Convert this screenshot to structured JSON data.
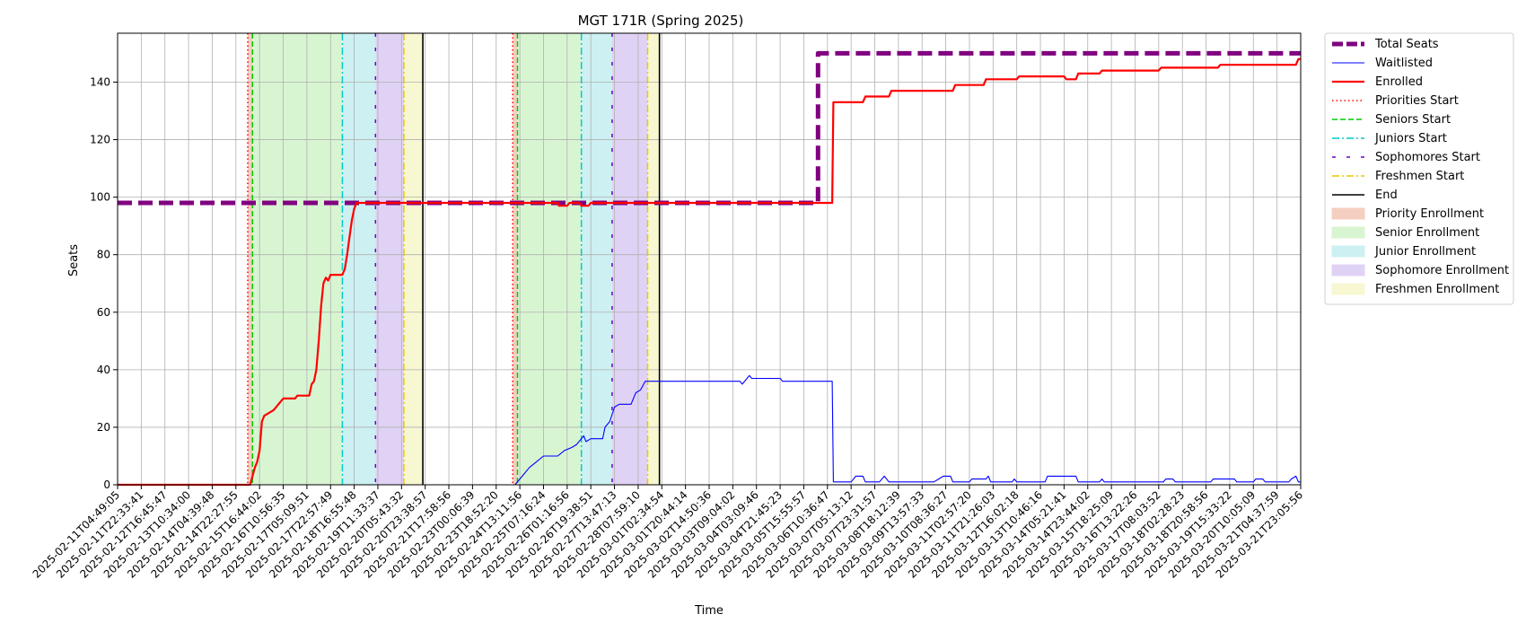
{
  "chart_data": {
    "type": "line",
    "title": "MGT 171R (Spring 2025)",
    "xlabel": "Time",
    "ylabel": "Seats",
    "ylim": [
      0,
      157
    ],
    "yticks": [
      0,
      20,
      40,
      60,
      80,
      100,
      120,
      140
    ],
    "grid": true,
    "legend_position": "outside right",
    "x_range_index": [
      0,
      50
    ],
    "x_tick_labels": [
      "2025-02-11T04:49:05",
      "2025-02-11T22:33:41",
      "2025-02-12T16:45:47",
      "2025-02-13T10:34:00",
      "2025-02-14T04:39:48",
      "2025-02-14T22:27:55",
      "2025-02-15T16:44:02",
      "2025-02-16T10:56:35",
      "2025-02-17T05:09:51",
      "2025-02-17T22:57:49",
      "2025-02-18T16:55:48",
      "2025-02-19T11:33:37",
      "2025-02-20T05:43:32",
      "2025-02-20T23:38:57",
      "2025-02-21T17:58:56",
      "2025-02-23T00:06:39",
      "2025-02-23T18:52:20",
      "2025-02-24T13:11:56",
      "2025-02-25T07:16:24",
      "2025-02-26T01:16:56",
      "2025-02-26T19:38:51",
      "2025-02-27T13:47:13",
      "2025-02-28T07:59:10",
      "2025-03-01T02:34:54",
      "2025-03-01T20:44:14",
      "2025-03-02T14:50:36",
      "2025-03-03T09:04:02",
      "2025-03-04T03:09:46",
      "2025-03-04T21:45:23",
      "2025-03-05T15:55:57",
      "2025-03-06T10:36:47",
      "2025-03-07T05:13:12",
      "2025-03-07T23:31:57",
      "2025-03-08T18:12:39",
      "2025-03-09T13:57:33",
      "2025-03-10T08:36:27",
      "2025-03-11T02:57:20",
      "2025-03-11T21:26:03",
      "2025-03-12T16:02:18",
      "2025-03-13T10:46:16",
      "2025-03-14T05:21:41",
      "2025-03-14T23:44:02",
      "2025-03-15T18:25:09",
      "2025-03-16T13:22:26",
      "2025-03-17T08:03:52",
      "2025-03-18T02:28:23",
      "2025-03-18T20:58:56",
      "2025-03-19T15:33:22",
      "2025-03-20T10:05:09",
      "2025-03-21T04:37:59",
      "2025-03-21T23:05:56"
    ],
    "series": [
      {
        "name": "Total Seats",
        "color": "#800080",
        "style": "dashed-thick",
        "points": [
          [
            0,
            98
          ],
          [
            29.6,
            98
          ],
          [
            29.6,
            150
          ],
          [
            50,
            150
          ]
        ]
      },
      {
        "name": "Waitlisted",
        "color": "#0000ff",
        "style": "solid-thin",
        "points": [
          [
            0,
            0
          ],
          [
            16.8,
            0
          ],
          [
            17.1,
            3
          ],
          [
            17.4,
            6
          ],
          [
            17.7,
            8
          ],
          [
            18.0,
            10
          ],
          [
            18.6,
            10
          ],
          [
            18.9,
            12
          ],
          [
            19.2,
            13
          ],
          [
            19.4,
            14
          ],
          [
            19.7,
            17
          ],
          [
            19.8,
            15
          ],
          [
            20.0,
            16
          ],
          [
            20.5,
            16
          ],
          [
            20.6,
            20
          ],
          [
            20.8,
            22
          ],
          [
            21.0,
            27
          ],
          [
            21.2,
            28
          ],
          [
            21.7,
            28
          ],
          [
            21.9,
            32
          ],
          [
            22.1,
            33
          ],
          [
            22.3,
            36
          ],
          [
            26.3,
            36
          ],
          [
            26.4,
            35
          ],
          [
            26.6,
            37
          ],
          [
            26.7,
            38
          ],
          [
            26.8,
            37
          ],
          [
            28.0,
            37
          ],
          [
            28.1,
            36
          ],
          [
            30.2,
            36
          ],
          [
            30.25,
            1
          ],
          [
            31.0,
            1
          ],
          [
            31.2,
            3
          ],
          [
            31.5,
            3
          ],
          [
            31.6,
            1
          ],
          [
            32.2,
            1
          ],
          [
            32.4,
            3
          ],
          [
            32.6,
            1
          ],
          [
            34.5,
            1
          ],
          [
            34.7,
            2
          ],
          [
            34.9,
            3
          ],
          [
            35.2,
            3
          ],
          [
            35.3,
            1
          ],
          [
            36.0,
            1
          ],
          [
            36.1,
            2
          ],
          [
            36.7,
            2
          ],
          [
            36.8,
            3
          ],
          [
            36.9,
            1
          ],
          [
            37.8,
            1
          ],
          [
            37.9,
            2
          ],
          [
            38.0,
            1
          ],
          [
            39.2,
            1
          ],
          [
            39.3,
            3
          ],
          [
            40.5,
            3
          ],
          [
            40.6,
            1
          ],
          [
            41.5,
            1
          ],
          [
            41.6,
            2
          ],
          [
            41.7,
            1
          ],
          [
            44.2,
            1
          ],
          [
            44.3,
            2
          ],
          [
            44.6,
            2
          ],
          [
            44.7,
            1
          ],
          [
            46.2,
            1
          ],
          [
            46.3,
            2
          ],
          [
            47.2,
            2
          ],
          [
            47.3,
            1
          ],
          [
            48.0,
            1
          ],
          [
            48.1,
            2
          ],
          [
            48.4,
            2
          ],
          [
            48.5,
            1
          ],
          [
            49.5,
            1
          ],
          [
            49.6,
            2
          ],
          [
            49.8,
            3
          ],
          [
            49.9,
            1
          ],
          [
            50,
            1
          ]
        ]
      },
      {
        "name": "Enrolled",
        "color": "#ff0000",
        "style": "solid-thick",
        "points": [
          [
            0,
            0
          ],
          [
            5.6,
            0
          ],
          [
            5.7,
            3
          ],
          [
            5.8,
            6
          ],
          [
            5.9,
            8
          ],
          [
            6.0,
            12
          ],
          [
            6.1,
            22
          ],
          [
            6.2,
            24
          ],
          [
            6.4,
            25
          ],
          [
            6.6,
            26
          ],
          [
            6.8,
            28
          ],
          [
            7.0,
            30
          ],
          [
            7.5,
            30
          ],
          [
            7.6,
            31
          ],
          [
            8.1,
            31
          ],
          [
            8.2,
            35
          ],
          [
            8.3,
            36
          ],
          [
            8.4,
            40
          ],
          [
            8.5,
            50
          ],
          [
            8.6,
            62
          ],
          [
            8.7,
            70
          ],
          [
            8.8,
            72
          ],
          [
            8.9,
            71
          ],
          [
            9.0,
            73
          ],
          [
            9.5,
            73
          ],
          [
            9.6,
            75
          ],
          [
            9.7,
            80
          ],
          [
            9.8,
            86
          ],
          [
            9.9,
            92
          ],
          [
            10.0,
            96
          ],
          [
            10.1,
            98
          ],
          [
            17.9,
            98
          ],
          [
            18.0,
            98
          ],
          [
            18.6,
            98
          ],
          [
            18.65,
            97
          ],
          [
            19.0,
            97
          ],
          [
            19.1,
            98
          ],
          [
            19.5,
            98
          ],
          [
            19.6,
            97
          ],
          [
            19.9,
            97
          ],
          [
            20.0,
            98
          ],
          [
            30.2,
            98
          ],
          [
            30.25,
            133
          ],
          [
            31.5,
            133
          ],
          [
            31.6,
            135
          ],
          [
            32.6,
            135
          ],
          [
            32.7,
            137
          ],
          [
            35.3,
            137
          ],
          [
            35.4,
            139
          ],
          [
            36.6,
            139
          ],
          [
            36.7,
            141
          ],
          [
            38.0,
            141
          ],
          [
            38.1,
            142
          ],
          [
            40.0,
            142
          ],
          [
            40.1,
            141
          ],
          [
            40.5,
            141
          ],
          [
            40.6,
            143
          ],
          [
            41.5,
            143
          ],
          [
            41.6,
            144
          ],
          [
            44.0,
            144
          ],
          [
            44.1,
            145
          ],
          [
            46.5,
            145
          ],
          [
            46.6,
            146
          ],
          [
            49.8,
            146
          ],
          [
            49.9,
            148
          ],
          [
            50,
            148
          ]
        ]
      }
    ],
    "phase_lines": [
      {
        "name": "Priorities Start",
        "color": "#ff0000",
        "style": "dotted",
        "x": [
          5.5,
          16.7
        ]
      },
      {
        "name": "Seniors Start",
        "color": "#00cc00",
        "style": "dashed",
        "x": [
          5.7,
          16.9
        ]
      },
      {
        "name": "Juniors Start",
        "color": "#00cccc",
        "style": "dashdot",
        "x": [
          9.5,
          19.6
        ]
      },
      {
        "name": "Sophomores Start",
        "color": "#6600cc",
        "style": "loosedash",
        "x": [
          10.9,
          20.9
        ]
      },
      {
        "name": "Freshmen Start",
        "color": "#e6c800",
        "style": "dashdot",
        "x": [
          12.1,
          22.4
        ]
      },
      {
        "name": "End",
        "color": "#000000",
        "style": "solid",
        "x": [
          12.9,
          22.9
        ]
      }
    ],
    "phase_bands": [
      {
        "name": "Priority Enrollment",
        "color": "#f4cfc0",
        "ranges": [
          [
            5.5,
            5.7
          ],
          [
            16.7,
            16.9
          ]
        ]
      },
      {
        "name": "Senior Enrollment",
        "color": "#d8f5d2",
        "ranges": [
          [
            5.7,
            9.5
          ],
          [
            16.9,
            19.6
          ]
        ]
      },
      {
        "name": "Junior Enrollment",
        "color": "#cdf0f2",
        "ranges": [
          [
            9.5,
            10.9
          ],
          [
            19.6,
            20.9
          ]
        ]
      },
      {
        "name": "Sophomore Enrollment",
        "color": "#e0d2f5",
        "ranges": [
          [
            10.9,
            12.1
          ],
          [
            20.9,
            22.4
          ]
        ]
      },
      {
        "name": "Freshmen Enrollment",
        "color": "#f7f7d2",
        "ranges": [
          [
            12.1,
            12.9
          ],
          [
            22.4,
            22.9
          ]
        ]
      }
    ]
  }
}
